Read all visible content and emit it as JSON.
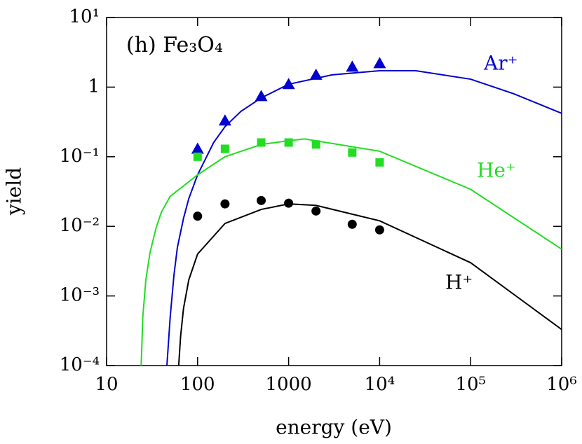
{
  "chart_data": {
    "type": "line",
    "annotation": "(h) Fe₃O₄",
    "xlabel": "energy (eV)",
    "ylabel": "yield",
    "xscale": "log",
    "yscale": "log",
    "xlim": [
      10,
      1000000
    ],
    "ylim": [
      0.0001,
      10
    ],
    "xticks": [
      10,
      100,
      1000,
      {
        "value": 10000,
        "label": "10⁴"
      },
      {
        "value": 100000,
        "label": "10⁵"
      },
      {
        "value": 1000000,
        "label": "10⁶"
      }
    ],
    "yticks": [
      {
        "value": 0.0001,
        "label": "10⁻⁴"
      },
      {
        "value": 0.001,
        "label": "10⁻³"
      },
      {
        "value": 0.01,
        "label": "10⁻²"
      },
      {
        "value": 0.1,
        "label": "10⁻¹"
      },
      1,
      {
        "value": 10,
        "label": "10¹"
      }
    ],
    "series": [
      {
        "name": "Ar⁺",
        "color": "#0000d0",
        "x": [
          46,
          50,
          55,
          60,
          70,
          80,
          100,
          150,
          200,
          300,
          500,
          1000,
          3000,
          10000,
          25000,
          100000,
          300000,
          1000000
        ],
        "values": [
          0.0001,
          0.0005,
          0.002,
          0.005,
          0.013,
          0.025,
          0.055,
          0.16,
          0.27,
          0.45,
          0.7,
          1.1,
          1.5,
          1.72,
          1.72,
          1.3,
          0.8,
          0.42
        ]
      },
      {
        "name": "He⁺",
        "color": "#22dd22",
        "x": [
          24,
          25,
          27,
          30,
          35,
          40,
          50,
          100,
          200,
          500,
          1000,
          1500,
          10000,
          100000,
          1000000
        ],
        "values": [
          0.0001,
          0.0005,
          0.0017,
          0.0042,
          0.0095,
          0.016,
          0.027,
          0.055,
          0.1,
          0.15,
          0.17,
          0.18,
          0.12,
          0.034,
          0.0047
        ]
      },
      {
        "name": "H⁺",
        "color": "#000000",
        "x": [
          62,
          65,
          70,
          80,
          100,
          200,
          500,
          1000,
          2000,
          10000,
          100000,
          1000000
        ],
        "values": [
          0.0001,
          0.00026,
          0.00066,
          0.0017,
          0.004,
          0.011,
          0.0175,
          0.021,
          0.02,
          0.012,
          0.003,
          0.00033
        ]
      }
    ],
    "points": [
      {
        "marker": "triangle",
        "color": "#0000d0",
        "x": [
          100,
          200,
          500,
          1000,
          2000,
          5000,
          10000
        ],
        "values": [
          0.13,
          0.33,
          0.74,
          1.1,
          1.5,
          1.96,
          2.2
        ]
      },
      {
        "marker": "square",
        "color": "#22dd22",
        "x": [
          100,
          200,
          500,
          1000,
          2000,
          5000,
          10000
        ],
        "values": [
          0.1,
          0.13,
          0.16,
          0.16,
          0.15,
          0.115,
          0.083
        ]
      },
      {
        "marker": "circle",
        "color": "#000000",
        "x": [
          100,
          200,
          500,
          1000,
          2000,
          5000,
          10000
        ],
        "values": [
          0.014,
          0.021,
          0.0235,
          0.0215,
          0.0166,
          0.0107,
          0.0089
        ]
      }
    ]
  }
}
